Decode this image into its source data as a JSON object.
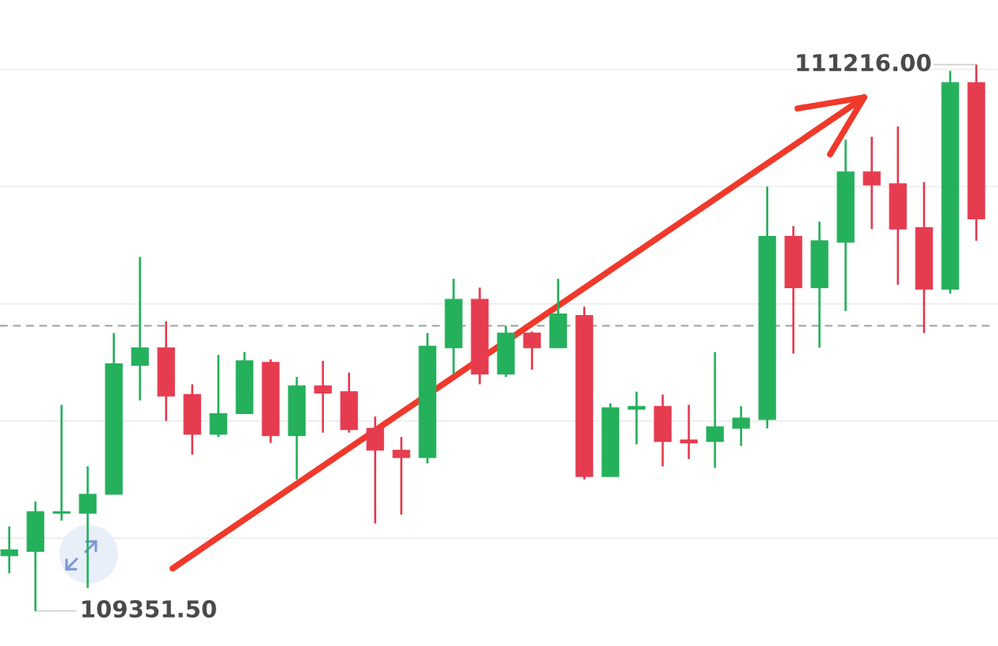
{
  "chart_data": {
    "type": "candlestick",
    "categories": [
      null,
      null,
      null,
      null,
      null,
      null,
      null,
      null,
      null,
      null,
      null,
      null,
      null,
      null,
      null,
      null,
      null,
      null,
      null,
      null,
      null,
      null,
      null,
      null,
      null,
      null,
      null,
      null,
      null,
      null,
      null,
      null,
      null,
      null,
      null,
      null,
      null,
      null
    ],
    "ohlc": [
      [
        109540,
        109640,
        109480,
        109560
      ],
      [
        109555,
        109725,
        109351.5,
        109690
      ],
      [
        109685,
        110055,
        109660,
        109690
      ],
      [
        109685,
        109845,
        109430,
        109750
      ],
      [
        109750,
        110300,
        109750,
        110195
      ],
      [
        110190,
        110560,
        110070,
        110250
      ],
      [
        110250,
        110340,
        110000,
        110085
      ],
      [
        110090,
        110125,
        109885,
        109955
      ],
      [
        109955,
        110225,
        109945,
        110025
      ],
      [
        110025,
        110235,
        110025,
        110205
      ],
      [
        110200,
        110210,
        109925,
        109950
      ],
      [
        109950,
        110150,
        109800,
        110120
      ],
      [
        110120,
        110205,
        109960,
        110095
      ],
      [
        110100,
        110165,
        109960,
        109970
      ],
      [
        109975,
        110015,
        109650,
        109900
      ],
      [
        109900,
        109945,
        109680,
        109875
      ],
      [
        109875,
        110300,
        109855,
        110255
      ],
      [
        110250,
        110485,
        110160,
        110415
      ],
      [
        110415,
        110455,
        110125,
        110160
      ],
      [
        110160,
        110325,
        110150,
        110300
      ],
      [
        110300,
        110305,
        110175,
        110250
      ],
      [
        110250,
        110485,
        110250,
        110365
      ],
      [
        110360,
        110390,
        109800,
        109810
      ],
      [
        109810,
        110060,
        109810,
        110045
      ],
      [
        110040,
        110100,
        109920,
        110050
      ],
      [
        110050,
        110090,
        109845,
        109930
      ],
      [
        109935,
        110055,
        109870,
        109925
      ],
      [
        109930,
        110235,
        109840,
        109980
      ],
      [
        109975,
        110050,
        109915,
        110010
      ],
      [
        110005,
        110800,
        109975,
        110630
      ],
      [
        110630,
        110665,
        110230,
        110455
      ],
      [
        110455,
        110680,
        110250,
        110615
      ],
      [
        110610,
        110960,
        110375,
        110850
      ],
      [
        110850,
        110970,
        110655,
        110805
      ],
      [
        110810,
        111005,
        110465,
        110655
      ],
      [
        110660,
        110815,
        110300,
        110450
      ],
      [
        110450,
        111195,
        110435,
        111155
      ],
      [
        111155,
        111216,
        110615,
        110690
      ]
    ],
    "colors": [
      "#25b05c",
      "#25b05c",
      "#25b05c",
      "#25b05c",
      "#25b05c",
      "#25b05c",
      "#e63c50",
      "#e63c50",
      "#25b05c",
      "#25b05c",
      "#e63c50",
      "#25b05c",
      "#e63c50",
      "#e63c50",
      "#e63c50",
      "#e63c50",
      "#25b05c",
      "#25b05c",
      "#e63c50",
      "#25b05c",
      "#e63c50",
      "#25b05c",
      "#e63c50",
      "#25b05c",
      "#25b05c",
      "#e63c50",
      "#e63c50",
      "#25b05c",
      "#25b05c",
      "#25b05c",
      "#e63c50",
      "#25b05c",
      "#25b05c",
      "#e63c50",
      "#e63c50",
      "#e63c50",
      "#25b05c",
      "#e63c50"
    ],
    "yticks": [
      {
        "value": 109600,
        "label": null
      },
      {
        "value": 110000,
        "label": null
      },
      {
        "value": 110400,
        "label": null
      },
      {
        "value": 110800,
        "label": null
      },
      {
        "value": 111200,
        "label": null
      }
    ],
    "grid": "y",
    "ref_lines": [
      {
        "axis": "y",
        "value": 110325,
        "color": "#9e9e9e",
        "line_style": "dashed"
      }
    ],
    "annotations": [
      "111216.00",
      "109351.50"
    ]
  }
}
